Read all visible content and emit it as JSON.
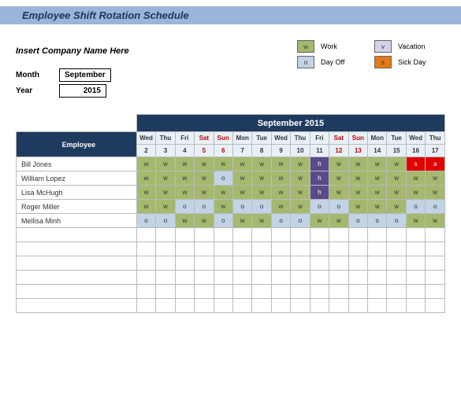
{
  "title": "Employee Shift Rotation Schedule",
  "company_placeholder": "Insert Company Name Here",
  "meta": {
    "month_label": "Month",
    "month_value": "September",
    "year_label": "Year",
    "year_value": "2015"
  },
  "legend": {
    "work": {
      "code": "w",
      "text": "Work",
      "bg": "#a4b96e"
    },
    "vacation": {
      "code": "v",
      "text": "Vacation",
      "bg": "#d3d3e8"
    },
    "dayoff": {
      "code": "o",
      "text": "Day Off",
      "bg": "#c1d3e5"
    },
    "sick": {
      "code": "s",
      "text": "Sick Day",
      "bg": "#e67817"
    }
  },
  "colors": {
    "work": "#a4b96e",
    "dayoff": "#c1d3e5",
    "vacation": "#d3d3e8",
    "holiday": "#5a4a8a",
    "sick_red": "#e00000",
    "header_navy": "#1f3a5f",
    "header_light": "#e8f0f7"
  },
  "schedule": {
    "month_header": "September 2015",
    "employee_header": "Employee",
    "col_width_emp": 150,
    "col_width_day": 24,
    "days": [
      {
        "dow": "Wed",
        "date": "2",
        "weekend": false
      },
      {
        "dow": "Thu",
        "date": "3",
        "weekend": false
      },
      {
        "dow": "Fri",
        "date": "4",
        "weekend": false
      },
      {
        "dow": "Sat",
        "date": "5",
        "weekend": true
      },
      {
        "dow": "Sun",
        "date": "6",
        "weekend": true
      },
      {
        "dow": "Mon",
        "date": "7",
        "weekend": false
      },
      {
        "dow": "Tue",
        "date": "8",
        "weekend": false
      },
      {
        "dow": "Wed",
        "date": "9",
        "weekend": false
      },
      {
        "dow": "Thu",
        "date": "10",
        "weekend": false
      },
      {
        "dow": "Fri",
        "date": "11",
        "weekend": false
      },
      {
        "dow": "Sat",
        "date": "12",
        "weekend": true
      },
      {
        "dow": "Sun",
        "date": "13",
        "weekend": true
      },
      {
        "dow": "Mon",
        "date": "14",
        "weekend": false
      },
      {
        "dow": "Tue",
        "date": "15",
        "weekend": false
      },
      {
        "dow": "Wed",
        "date": "16",
        "weekend": false
      },
      {
        "dow": "Thu",
        "date": "17",
        "weekend": false
      }
    ],
    "employees": [
      {
        "name": "Bill Jones",
        "shifts": [
          "w",
          "w",
          "w",
          "w",
          "w",
          "w",
          "w",
          "w",
          "w",
          "h",
          "w",
          "w",
          "w",
          "w",
          "s_red",
          "a_red"
        ]
      },
      {
        "name": "William Lopez",
        "shifts": [
          "w",
          "w",
          "w",
          "w",
          "o",
          "w",
          "w",
          "w",
          "w",
          "h",
          "w",
          "w",
          "w",
          "w",
          "w",
          "w"
        ]
      },
      {
        "name": "Lisa McHugh",
        "shifts": [
          "w",
          "w",
          "w",
          "w",
          "w",
          "w",
          "w",
          "w",
          "w",
          "h",
          "w",
          "w",
          "w",
          "w",
          "w",
          "w"
        ]
      },
      {
        "name": "Roger Miller",
        "shifts": [
          "w",
          "w",
          "o",
          "o",
          "w",
          "o",
          "o",
          "w",
          "w",
          "o",
          "o",
          "w",
          "w",
          "w",
          "o",
          "o"
        ]
      },
      {
        "name": "Mellisa Minh",
        "shifts": [
          "o",
          "o",
          "w",
          "w",
          "o",
          "w",
          "w",
          "o",
          "o",
          "w",
          "w",
          "o",
          "o",
          "o",
          "w",
          "w"
        ]
      }
    ],
    "empty_rows": 6
  }
}
